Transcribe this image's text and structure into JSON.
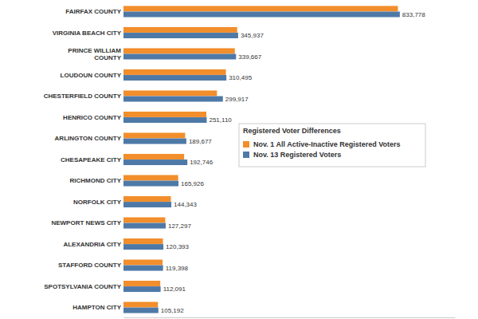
{
  "chart_data": {
    "type": "bar",
    "orientation": "horizontal",
    "data_labels": true,
    "tick_labels": false,
    "legend": "right",
    "legend_title": "Registered Voter Differences",
    "categories": [
      "FAIRFAX COUNTY",
      "VIRGINIA BEACH CITY",
      "PRINCE WILLIAM COUNTY",
      "LOUDOUN COUNTY",
      "CHESTERFIELD COUNTY",
      "HENRICO COUNTY",
      "ARLINGTON COUNTY",
      "CHESAPEAKE CITY",
      "RICHMOND CITY",
      "NORFOLK CITY",
      "NEWPORT NEWS CITY",
      "ALEXANDRIA CITY",
      "STAFFORD COUNTY",
      "SPOTSYLVANIA COUNTY",
      "HAMPTON CITY"
    ],
    "xlim": [
      0,
      1000000
    ],
    "series": [
      {
        "name": "Nov. 1 All Active-Inactive Registered Voters",
        "color": "#f28e2b",
        "values": [
          828000,
          343000,
          336000,
          309000,
          282000,
          250000,
          186000,
          183000,
          165000,
          143000,
          126000,
          119000,
          118000,
          111000,
          104000
        ]
      },
      {
        "name": "Nov. 13 Registered Voters",
        "color": "#4e79a7",
        "values": [
          833778,
          345937,
          339667,
          310495,
          299917,
          251110,
          189677,
          192746,
          165926,
          144343,
          127297,
          120393,
          119398,
          112091,
          105192
        ],
        "value_labels": [
          "833,778",
          "345,937",
          "339,667",
          "310,495",
          "299,917",
          "251,110",
          "189,677",
          "192,746",
          "165,926",
          "144,343",
          "127,297",
          "120,393",
          "119,398",
          "112,091",
          "105,192"
        ]
      }
    ]
  }
}
